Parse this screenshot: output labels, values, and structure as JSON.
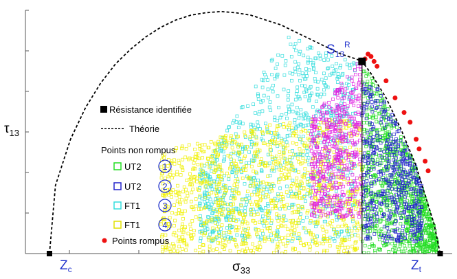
{
  "chart_data": {
    "type": "scatter",
    "title": "",
    "xlabel_main": "σ",
    "xlabel_sub": "33",
    "ylabel_main": "τ",
    "ylabel_sub": "13",
    "grid": false,
    "xlim": [
      -1.0,
      0.42
    ],
    "ylim": [
      0,
      1.0
    ],
    "axis_labels": {
      "zc_main": "Z",
      "zc_sub": "c",
      "zt_main": "Z",
      "zt_sub": "t",
      "s_main": "S",
      "s_sub": "13",
      "s_sup": "R"
    },
    "key_points": {
      "zc": {
        "x": -0.92,
        "y": 0
      },
      "zt": {
        "x": 0.38,
        "y": 0
      },
      "strength": {
        "x": 0.12,
        "y": 0.79
      }
    },
    "theory_curve": {
      "x": [
        -0.92,
        -0.9,
        -0.85,
        -0.8,
        -0.75,
        -0.7,
        -0.65,
        -0.6,
        -0.55,
        -0.5,
        -0.45,
        -0.4,
        -0.35,
        -0.3,
        -0.25,
        -0.2,
        -0.15,
        -0.1,
        -0.05,
        0.0,
        0.05,
        0.1,
        0.12,
        0.15,
        0.2,
        0.25,
        0.3,
        0.33,
        0.36,
        0.38
      ],
      "y": [
        0.0,
        0.28,
        0.47,
        0.6,
        0.7,
        0.78,
        0.84,
        0.89,
        0.93,
        0.96,
        0.98,
        0.99,
        0.995,
        0.99,
        0.98,
        0.96,
        0.94,
        0.91,
        0.88,
        0.85,
        0.82,
        0.8,
        0.79,
        0.74,
        0.64,
        0.51,
        0.36,
        0.24,
        0.12,
        0.0
      ]
    },
    "ruptured_points": {
      "x": [
        0.13,
        0.14,
        0.15,
        0.16,
        0.17,
        0.2,
        0.23,
        0.26,
        0.28,
        0.3,
        0.31,
        0.33,
        0.34
      ],
      "y": [
        0.8,
        0.82,
        0.81,
        0.79,
        0.77,
        0.71,
        0.64,
        0.58,
        0.54,
        0.47,
        0.43,
        0.38,
        0.34
      ]
    },
    "legend": {
      "resistance": "Résistance identifiée",
      "theory": "Théorie",
      "non_ruptured_title": "Points non rompus",
      "series": [
        {
          "name": "UT2",
          "num": "1",
          "color": "#22dd22"
        },
        {
          "name": "UT2",
          "num": "2",
          "color": "#2222cc"
        },
        {
          "name": "FT1",
          "num": "3",
          "color": "#33dddd"
        },
        {
          "name": "FT1",
          "num": "4",
          "color": "#f0f000"
        }
      ],
      "ruptured": "Points rompus"
    },
    "colors": {
      "magenta": "#e020e0",
      "ruptured": "#ee1111",
      "label_blue": "#2233cc",
      "theory": "#000000"
    }
  }
}
